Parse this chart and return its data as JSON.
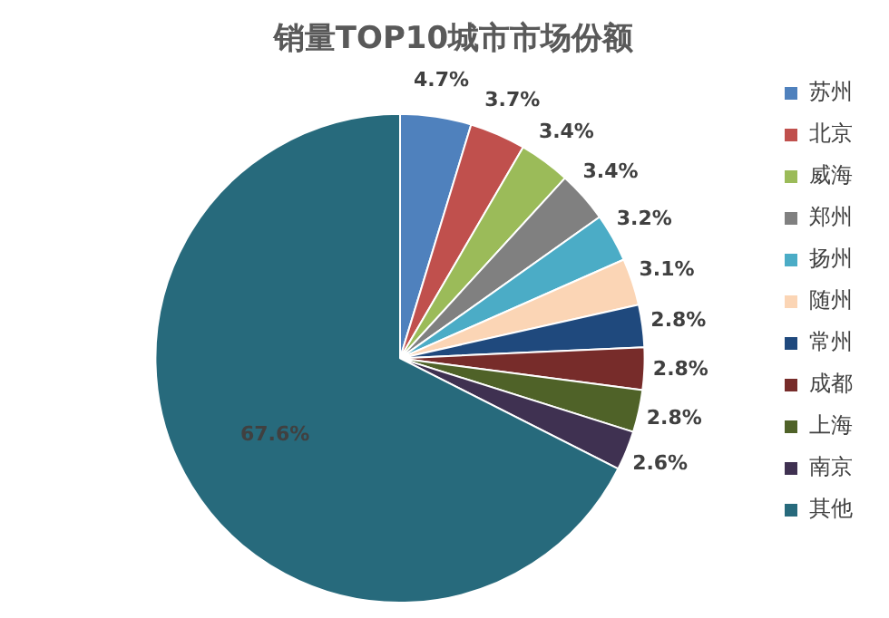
{
  "chart_data": {
    "type": "pie",
    "title": "销量TOP10城市市场份额",
    "categories": [
      "苏州",
      "北京",
      "威海",
      "郑州",
      "扬州",
      "随州",
      "常州",
      "成都",
      "上海",
      "南京",
      "其他"
    ],
    "values": [
      4.7,
      3.7,
      3.4,
      3.4,
      3.2,
      3.1,
      2.8,
      2.8,
      2.8,
      2.6,
      67.6
    ],
    "value_labels": [
      "4.7%",
      "3.7%",
      "3.4%",
      "3.4%",
      "3.2%",
      "3.1%",
      "2.8%",
      "2.8%",
      "2.8%",
      "2.6%",
      "67.6%"
    ],
    "colors": [
      "#4f81bd",
      "#c0504d",
      "#9bbb59",
      "#808080",
      "#4bacc6",
      "#fbd5b5",
      "#1f497d",
      "#772c2a",
      "#4f6228",
      "#3f3151",
      "#276a7c"
    ],
    "legend": "right"
  }
}
